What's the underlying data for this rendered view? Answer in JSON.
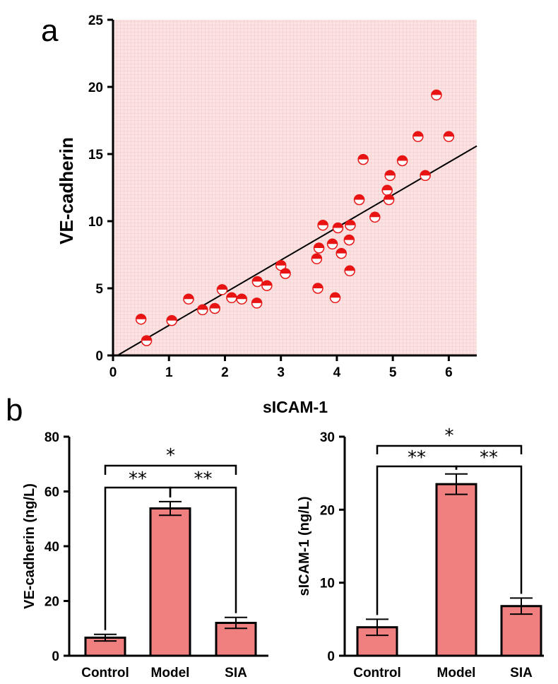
{
  "colors": {
    "plot_background": "#fbe3e3",
    "grid": "#f4c9c9",
    "point_fill": "#e81414",
    "bar_fill": "#f08080",
    "line": "#000000"
  },
  "panels": {
    "a_label": "a",
    "b_label": "b"
  },
  "chart_data": [
    {
      "type": "scatter",
      "xlabel": "sICAM-1",
      "ylabel": "VE-cadherin",
      "xlim": [
        0,
        6.5
      ],
      "ylim": [
        0,
        25
      ],
      "xticks": [
        "0",
        "1",
        "2",
        "3",
        "4",
        "5",
        "6"
      ],
      "yticks": [
        "0",
        "5",
        "10",
        "15",
        "20",
        "25"
      ],
      "grid": true,
      "marker": "half-filled circle",
      "points": [
        {
          "x": 0.5,
          "y": 2.7
        },
        {
          "x": 0.6,
          "y": 1.1
        },
        {
          "x": 1.05,
          "y": 2.6
        },
        {
          "x": 1.35,
          "y": 4.2
        },
        {
          "x": 1.6,
          "y": 3.4
        },
        {
          "x": 1.82,
          "y": 3.5
        },
        {
          "x": 1.95,
          "y": 4.9
        },
        {
          "x": 2.12,
          "y": 4.3
        },
        {
          "x": 2.3,
          "y": 4.2
        },
        {
          "x": 2.57,
          "y": 3.9
        },
        {
          "x": 2.58,
          "y": 5.5
        },
        {
          "x": 2.75,
          "y": 5.2
        },
        {
          "x": 3.0,
          "y": 6.7
        },
        {
          "x": 3.08,
          "y": 6.1
        },
        {
          "x": 3.64,
          "y": 7.2
        },
        {
          "x": 3.66,
          "y": 5.0
        },
        {
          "x": 3.68,
          "y": 8.0
        },
        {
          "x": 3.75,
          "y": 9.7
        },
        {
          "x": 3.92,
          "y": 8.3
        },
        {
          "x": 3.97,
          "y": 4.3
        },
        {
          "x": 4.02,
          "y": 9.5
        },
        {
          "x": 4.08,
          "y": 7.6
        },
        {
          "x": 4.22,
          "y": 8.6
        },
        {
          "x": 4.23,
          "y": 6.3
        },
        {
          "x": 4.24,
          "y": 9.7
        },
        {
          "x": 4.4,
          "y": 11.6
        },
        {
          "x": 4.47,
          "y": 14.6
        },
        {
          "x": 4.68,
          "y": 10.3
        },
        {
          "x": 4.9,
          "y": 12.3
        },
        {
          "x": 4.93,
          "y": 11.6
        },
        {
          "x": 4.95,
          "y": 13.4
        },
        {
          "x": 5.17,
          "y": 14.5
        },
        {
          "x": 5.45,
          "y": 16.3
        },
        {
          "x": 5.58,
          "y": 13.4
        },
        {
          "x": 5.78,
          "y": 19.4
        },
        {
          "x": 6.0,
          "y": 16.3
        }
      ],
      "fit_line": {
        "x": [
          0.1,
          6.5
        ],
        "y": [
          0.05,
          15.6
        ]
      }
    },
    {
      "type": "bar",
      "categories": [
        "Control",
        "Model",
        "SIA"
      ],
      "values": [
        6.6,
        53.8,
        12.0
      ],
      "errors": [
        1.2,
        2.5,
        2.0
      ],
      "ylabel": "VE-cadherin (ng/L)",
      "ylim": [
        0,
        80
      ],
      "yticks": [
        "0",
        "20",
        "40",
        "60",
        "80"
      ],
      "significance": [
        {
          "from": 0,
          "to": 1,
          "label": "**"
        },
        {
          "from": 1,
          "to": 2,
          "label": "**"
        },
        {
          "from": 0,
          "to": 2,
          "label": "*"
        }
      ]
    },
    {
      "type": "bar",
      "categories": [
        "Control",
        "Model",
        "SIA"
      ],
      "values": [
        3.9,
        23.5,
        6.8
      ],
      "errors": [
        1.1,
        1.4,
        1.1
      ],
      "ylabel": "sICAM-1 (ng/L)",
      "ylim": [
        0,
        30
      ],
      "yticks": [
        "0",
        "10",
        "20",
        "30"
      ],
      "significance": [
        {
          "from": 0,
          "to": 1,
          "label": "**"
        },
        {
          "from": 1,
          "to": 2,
          "label": "**"
        },
        {
          "from": 0,
          "to": 2,
          "label": "*"
        }
      ]
    }
  ]
}
